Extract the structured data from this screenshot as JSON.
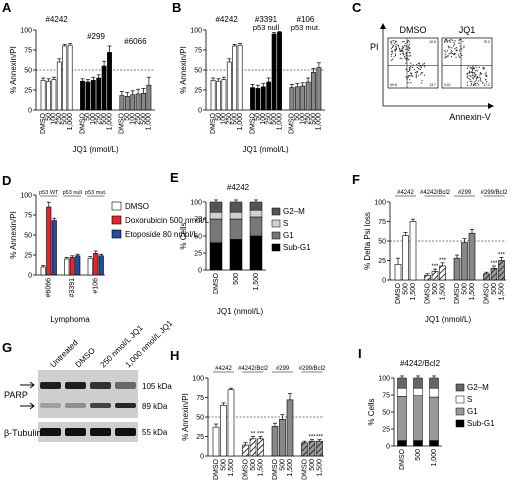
{
  "panels": {
    "A": {
      "label": "A",
      "ylabel": "% Annexin/PI",
      "xlabel": "JQ1 (nmol/L)",
      "ylim": [
        0,
        100
      ],
      "yticks": [
        "0",
        "25",
        "50",
        "75",
        "100"
      ],
      "threshold": 50,
      "groups": [
        {
          "name": "#4242",
          "color": "#ffffff",
          "values": [
            37,
            36,
            38,
            60,
            80,
            81
          ],
          "errors": [
            3,
            3,
            3,
            4,
            2,
            2
          ]
        },
        {
          "name": "#299",
          "color": "#000000",
          "values": [
            36,
            35,
            37,
            40,
            55,
            72
          ],
          "errors": [
            3,
            3,
            4,
            4,
            6,
            8
          ]
        },
        {
          "name": "#6066",
          "color": "#888888",
          "values": [
            18,
            17,
            19,
            20,
            21,
            31
          ],
          "errors": [
            5,
            5,
            5,
            6,
            6,
            10
          ]
        }
      ],
      "tick_labels": [
        "DMSO",
        "50",
        "100",
        "250",
        "500",
        "1,000"
      ]
    },
    "B": {
      "label": "B",
      "ylabel": "% Annexin/PI",
      "xlabel": "JQ1 (nmol/L)",
      "ylim": [
        0,
        100
      ],
      "yticks": [
        "0",
        "25",
        "50",
        "75",
        "100"
      ],
      "threshold": 50,
      "groups": [
        {
          "name": "#4242",
          "note": "",
          "color": "#ffffff",
          "values": [
            37,
            36,
            38,
            60,
            80,
            81
          ],
          "errors": [
            3,
            3,
            3,
            4,
            2,
            2
          ]
        },
        {
          "name": "#3391",
          "note": "p53 null",
          "color": "#000000",
          "values": [
            28,
            27,
            29,
            35,
            95,
            97
          ],
          "errors": [
            4,
            4,
            4,
            5,
            2,
            1
          ]
        },
        {
          "name": "#106",
          "note": "p53 mut.",
          "color": "#888888",
          "values": [
            28,
            29,
            30,
            35,
            47,
            53
          ],
          "errors": [
            4,
            4,
            4,
            5,
            5,
            6
          ]
        }
      ],
      "tick_labels": [
        "DMSO",
        "50",
        "100",
        "250",
        "500",
        "1,000"
      ]
    },
    "C": {
      "label": "C",
      "left_title": "DMSO",
      "right_title": "JQ1",
      "yaxis": "PI",
      "xaxis": "Annexin-V",
      "quad_left": [
        "5.76",
        "10.6",
        "69.8",
        "13.7"
      ],
      "quad_right": [
        "2.74",
        "70.2",
        "9.01",
        "17.2"
      ]
    },
    "D": {
      "label": "D",
      "ylabel": "% Annexin/PI",
      "xlabel": "Lymphoma",
      "ylim": [
        0,
        100
      ],
      "yticks": [
        "0",
        "25",
        "50",
        "75",
        "100"
      ],
      "legend": [
        {
          "name": "DMSO",
          "color": "#ffffff"
        },
        {
          "name": "Doxorubicin 500 nmol/L",
          "color": "#e3262b"
        },
        {
          "name": "Etoposide 80 nmol/L",
          "color": "#1f4e9c"
        }
      ],
      "groups": [
        {
          "name": "#6066",
          "bracket": "p53 WT",
          "values": [
            10,
            85,
            68
          ],
          "errors": [
            2,
            6,
            3
          ]
        },
        {
          "name": "#3391",
          "bracket": "p53 null",
          "values": [
            20,
            22,
            24
          ],
          "errors": [
            2,
            2,
            2
          ]
        },
        {
          "name": "#106",
          "bracket": "p53 mut.",
          "values": [
            21,
            27,
            24
          ],
          "errors": [
            2,
            3,
            2
          ]
        }
      ]
    },
    "E": {
      "label": "E",
      "title": "#4242",
      "ylabel": "% Cells",
      "xlabel": "JQ1 (nmol/L)",
      "ylim": [
        0,
        100
      ],
      "yticks": [
        "0",
        "25",
        "50",
        "75",
        "100"
      ],
      "categories": [
        "DMSO",
        "500",
        "1,500"
      ],
      "series": [
        {
          "name": "Sub-G1",
          "color": "#000000",
          "values": [
            40,
            45,
            50
          ]
        },
        {
          "name": "G1",
          "color": "#777777",
          "values": [
            35,
            30,
            28
          ]
        },
        {
          "name": "S",
          "color": "#d0d0d0",
          "values": [
            10,
            10,
            10
          ]
        },
        {
          "name": "G2–M",
          "color": "#555555",
          "values": [
            15,
            15,
            12
          ]
        }
      ],
      "legend": [
        {
          "name": "G2–M",
          "color": "#555555"
        },
        {
          "name": "S",
          "color": "#d0d0d0"
        },
        {
          "name": "G1",
          "color": "#777777"
        },
        {
          "name": "Sub-G1",
          "color": "#000000"
        }
      ]
    },
    "F": {
      "label": "F",
      "ylabel": "% Delta Psi loss",
      "xlabel": "JQ1 (nmol/L)",
      "ylim": [
        0,
        100
      ],
      "yticks": [
        "0",
        "25",
        "50",
        "75",
        "100"
      ],
      "threshold": 50,
      "tick_labels": [
        "DMSO",
        "500",
        "1,500"
      ],
      "groups": [
        {
          "name": "#4242",
          "values": [
            20,
            57,
            75
          ],
          "errors": [
            8,
            4,
            3
          ],
          "stars": [
            "",
            "",
            ""
          ]
        },
        {
          "name": "#4242/Bcl2",
          "values": [
            6,
            11,
            18
          ],
          "errors": [
            2,
            3,
            4
          ],
          "stars": [
            "",
            "***",
            "***"
          ]
        },
        {
          "name": "#299",
          "values": [
            28,
            48,
            60
          ],
          "errors": [
            4,
            5,
            5
          ],
          "stars": [
            "",
            "",
            ""
          ]
        },
        {
          "name": "#299/Bcl2",
          "values": [
            8,
            15,
            25
          ],
          "errors": [
            2,
            3,
            4
          ],
          "stars": [
            "",
            "***",
            "***"
          ]
        }
      ]
    },
    "G": {
      "label": "G",
      "lanes": [
        "Untreated",
        "DMSO",
        "250 nmol/L JQ1",
        "1,000 nmol/L JQ1"
      ],
      "parp": "PARP",
      "tubulin": "β-Tubulin",
      "kda": [
        "105 kDa",
        "89 kDa",
        "55 kDa"
      ]
    },
    "H": {
      "label": "H",
      "ylabel": "% Annexin/PI",
      "xlabel": "JQ1 (nmol/L)",
      "ylim": [
        0,
        100
      ],
      "yticks": [
        "0",
        "25",
        "50",
        "75",
        "100"
      ],
      "threshold": 50,
      "tick_labels": [
        "DMSO",
        "500",
        "1,500"
      ],
      "groups": [
        {
          "name": "#4242",
          "values": [
            37,
            65,
            85
          ],
          "errors": [
            4,
            3,
            2
          ],
          "stars": [
            "",
            "",
            ""
          ]
        },
        {
          "name": "#4242/Bcl2",
          "values": [
            14,
            22,
            22
          ],
          "errors": [
            3,
            3,
            3
          ],
          "stars": [
            "",
            "**",
            "***"
          ]
        },
        {
          "name": "#299",
          "values": [
            38,
            47,
            72
          ],
          "errors": [
            4,
            6,
            8
          ],
          "stars": [
            "",
            "",
            ""
          ]
        },
        {
          "name": "#299/Bcl2",
          "values": [
            17,
            19,
            19
          ],
          "errors": [
            2,
            2,
            2
          ],
          "stars": [
            "",
            "***",
            "***"
          ]
        }
      ]
    },
    "I": {
      "label": "I",
      "title": "#4242/Bcl2",
      "ylabel": "% Cells",
      "xlabel": "JQ1 (nmol/L)",
      "ylim": [
        0,
        100
      ],
      "yticks": [
        "0",
        "25",
        "50",
        "75",
        "100"
      ],
      "categories": [
        "DMSO",
        "500",
        "1,000"
      ],
      "series": [
        {
          "name": "Sub-G1",
          "color": "#000000",
          "values": [
            8,
            8,
            8
          ]
        },
        {
          "name": "G1",
          "color": "#999999",
          "values": [
            65,
            66,
            64
          ]
        },
        {
          "name": "S",
          "color": "#ffffff",
          "values": [
            12,
            11,
            13
          ]
        },
        {
          "name": "G2–M",
          "color": "#666666",
          "values": [
            15,
            15,
            15
          ]
        }
      ],
      "legend": [
        {
          "name": "G2–M",
          "color": "#666666"
        },
        {
          "name": "S",
          "color": "#ffffff"
        },
        {
          "name": "G1",
          "color": "#999999"
        },
        {
          "name": "Sub-G1",
          "color": "#000000"
        }
      ]
    }
  }
}
